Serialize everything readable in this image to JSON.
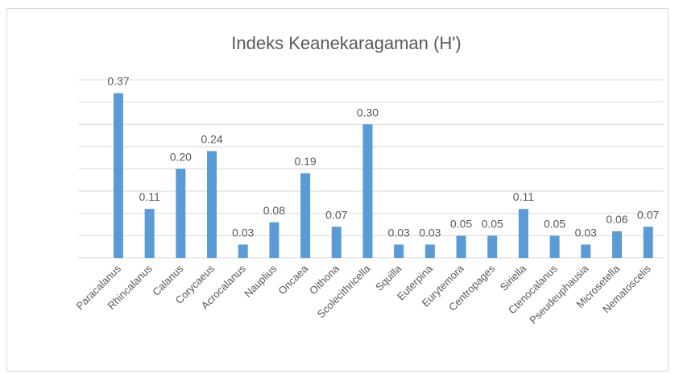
{
  "chart_data": {
    "type": "bar",
    "title": "Indeks Keanekaragaman (H')",
    "categories": [
      "Paracalanus",
      "Rhincalanus",
      "Calanus",
      "Corycaeus",
      "Acrocalanus",
      "Nauplius",
      "Oncaea",
      "Oithona",
      "Scolecithricella",
      "Squilla",
      "Euterpina",
      "Eurytemora",
      "Centropages",
      "Siriella",
      "Ctenocalanus",
      "Pseudeuphausia",
      "Microsetella",
      "Nematoscelis"
    ],
    "values": [
      0.37,
      0.11,
      0.2,
      0.24,
      0.03,
      0.08,
      0.19,
      0.07,
      0.3,
      0.03,
      0.03,
      0.05,
      0.05,
      0.11,
      0.05,
      0.03,
      0.06,
      0.07
    ],
    "value_labels": [
      "0.37",
      "0.11",
      "0.20",
      "0.24",
      "0.03",
      "0.08",
      "0.19",
      "0.07",
      "0.30",
      "0.03",
      "0.03",
      "0.05",
      "0.05",
      "0.11",
      "0.05",
      "0.03",
      "0.06",
      "0.07"
    ],
    "color": "#5b9bd5",
    "ylim": [
      0,
      0.4
    ],
    "yticks": [
      0,
      0.05,
      0.1,
      0.15,
      0.2,
      0.25,
      0.3,
      0.35,
      0.4
    ],
    "grid": true
  }
}
